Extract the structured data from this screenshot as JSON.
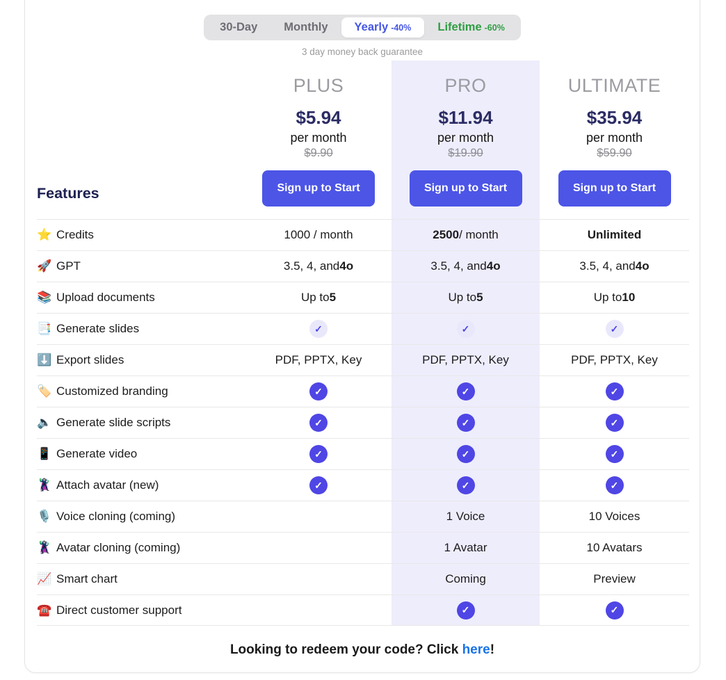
{
  "toggle": {
    "options": [
      {
        "label": "30-Day",
        "badge": "",
        "active": false,
        "style": "default"
      },
      {
        "label": "Monthly",
        "badge": "",
        "active": false,
        "style": "default"
      },
      {
        "label": "Yearly",
        "badge": "-40%",
        "active": true,
        "style": "primary"
      },
      {
        "label": "Lifetime",
        "badge": "-60%",
        "active": false,
        "style": "success"
      }
    ]
  },
  "guarantee": "3 day money back guarantee",
  "features_heading": "Features",
  "plans": [
    {
      "name": "PLUS",
      "price": "$5.94",
      "period": "per month",
      "old_price": "$9.90",
      "cta": "Sign up to Start",
      "highlighted": false
    },
    {
      "name": "PRO",
      "price": "$11.94",
      "period": "per month",
      "old_price": "$19.90",
      "cta": "Sign up to Start",
      "highlighted": true
    },
    {
      "name": "ULTIMATE",
      "price": "$35.94",
      "period": "per month",
      "old_price": "$59.90",
      "cta": "Sign up to Start",
      "highlighted": false
    }
  ],
  "glyphs": {
    "check": "✓"
  },
  "features": [
    {
      "icon_name": "star-icon",
      "icon": "⭐",
      "label": "Credits",
      "cells": [
        {
          "kind": "text",
          "parts": [
            {
              "t": "1000 / month"
            }
          ]
        },
        {
          "kind": "text",
          "parts": [
            {
              "t": "2500",
              "b": true
            },
            {
              "t": " / month"
            }
          ]
        },
        {
          "kind": "text",
          "parts": [
            {
              "t": "Unlimited",
              "b": true
            }
          ]
        }
      ]
    },
    {
      "icon_name": "rocket-icon",
      "icon": "🚀",
      "label": "GPT",
      "cells": [
        {
          "kind": "text",
          "parts": [
            {
              "t": "3.5, 4, and "
            },
            {
              "t": "4o",
              "b": true
            }
          ]
        },
        {
          "kind": "text",
          "parts": [
            {
              "t": "3.5, 4, and "
            },
            {
              "t": "4o",
              "b": true
            }
          ]
        },
        {
          "kind": "text",
          "parts": [
            {
              "t": "3.5, 4, and "
            },
            {
              "t": "4o",
              "b": true
            }
          ]
        }
      ]
    },
    {
      "icon_name": "books-icon",
      "icon": "📚",
      "label": "Upload documents",
      "cells": [
        {
          "kind": "text",
          "parts": [
            {
              "t": "Up to "
            },
            {
              "t": "5",
              "b": true
            }
          ]
        },
        {
          "kind": "text",
          "parts": [
            {
              "t": "Up to "
            },
            {
              "t": "5",
              "b": true
            }
          ]
        },
        {
          "kind": "text",
          "parts": [
            {
              "t": "Up to "
            },
            {
              "t": "10",
              "b": true
            }
          ]
        }
      ]
    },
    {
      "icon_name": "bookmark-tabs-icon",
      "icon": "📑",
      "label": "Generate slides",
      "cells": [
        {
          "kind": "check-light"
        },
        {
          "kind": "check-light"
        },
        {
          "kind": "check-light"
        }
      ]
    },
    {
      "icon_name": "down-arrow-icon",
      "icon": "⬇️",
      "label": "Export slides",
      "cells": [
        {
          "kind": "text",
          "parts": [
            {
              "t": "PDF, PPTX, Key"
            }
          ]
        },
        {
          "kind": "text",
          "parts": [
            {
              "t": "PDF, PPTX, Key"
            }
          ]
        },
        {
          "kind": "text",
          "parts": [
            {
              "t": "PDF, PPTX, Key"
            }
          ]
        }
      ]
    },
    {
      "icon_name": "label-tag-icon",
      "icon": "🏷️",
      "label": "Customized branding",
      "cells": [
        {
          "kind": "check"
        },
        {
          "kind": "check"
        },
        {
          "kind": "check"
        }
      ]
    },
    {
      "icon_name": "speaker-icon",
      "icon": "🔈",
      "label": "Generate slide scripts",
      "cells": [
        {
          "kind": "check"
        },
        {
          "kind": "check"
        },
        {
          "kind": "check"
        }
      ]
    },
    {
      "icon_name": "mobile-phone-icon",
      "icon": "📱",
      "label": "Generate video",
      "cells": [
        {
          "kind": "check"
        },
        {
          "kind": "check"
        },
        {
          "kind": "check"
        }
      ]
    },
    {
      "icon_name": "supervillain-icon",
      "icon": "🦹",
      "label": "Attach avatar (new)",
      "cells": [
        {
          "kind": "check"
        },
        {
          "kind": "check"
        },
        {
          "kind": "check"
        }
      ]
    },
    {
      "icon_name": "microphone-icon",
      "icon": "🎙️",
      "label": "Voice cloning (coming)",
      "cells": [
        {
          "kind": "empty"
        },
        {
          "kind": "text",
          "parts": [
            {
              "t": "1 Voice"
            }
          ]
        },
        {
          "kind": "text",
          "parts": [
            {
              "t": "10 Voices"
            }
          ]
        }
      ]
    },
    {
      "icon_name": "supervillain-icon",
      "icon": "🦹",
      "label": "Avatar cloning (coming)",
      "cells": [
        {
          "kind": "empty"
        },
        {
          "kind": "text",
          "parts": [
            {
              "t": "1 Avatar"
            }
          ]
        },
        {
          "kind": "text",
          "parts": [
            {
              "t": "10 Avatars"
            }
          ]
        }
      ]
    },
    {
      "icon_name": "chart-increasing-icon",
      "icon": "📈",
      "label": "Smart chart",
      "cells": [
        {
          "kind": "empty"
        },
        {
          "kind": "text",
          "parts": [
            {
              "t": "Coming"
            }
          ]
        },
        {
          "kind": "text",
          "parts": [
            {
              "t": "Preview"
            }
          ]
        }
      ]
    },
    {
      "icon_name": "telephone-icon",
      "icon": "☎️",
      "label": "Direct customer support",
      "cells": [
        {
          "kind": "empty"
        },
        {
          "kind": "check"
        },
        {
          "kind": "check"
        }
      ]
    }
  ],
  "footer": {
    "text_before": "Looking to redeem your code? Click ",
    "link": "here",
    "text_after": "!"
  },
  "colors": {
    "accent_button": "#4c55e6",
    "check_circle": "#4f46e5",
    "check_light_bg": "#e9e8fb",
    "highlight_column_bg": "#eeedfc",
    "yearly_blue": "#4556e4",
    "lifetime_green": "#2f9e44",
    "link_blue": "#1a73e8",
    "price_navy": "#2b2c64"
  }
}
